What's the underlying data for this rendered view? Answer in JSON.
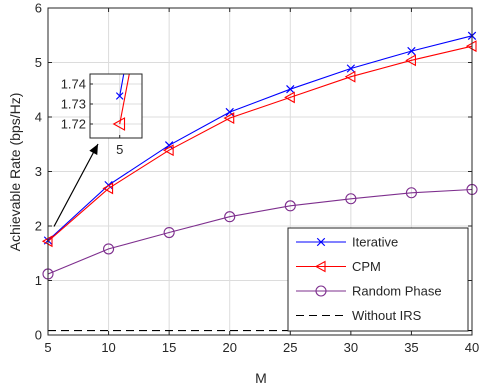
{
  "chart_data": {
    "type": "line",
    "xlabel": "M",
    "ylabel": "Achievable Rate (bps/Hz)",
    "xlim": [
      5,
      40
    ],
    "ylim": [
      0,
      6
    ],
    "x": [
      5,
      10,
      15,
      20,
      25,
      30,
      35,
      40
    ],
    "xticks": [
      "5",
      "10",
      "15",
      "20",
      "25",
      "30",
      "35",
      "40"
    ],
    "yticks": [
      "0",
      "1",
      "2",
      "3",
      "4",
      "5",
      "6"
    ],
    "grid": true,
    "legend_position": "bottom-right",
    "series": [
      {
        "name": "Iterative",
        "color": "#0000ff",
        "marker": "x",
        "dash": "solid",
        "values": [
          1.734,
          2.75,
          3.48,
          4.09,
          4.51,
          4.89,
          5.21,
          5.49
        ]
      },
      {
        "name": "CPM",
        "color": "#ff0000",
        "marker": "triangle-left",
        "dash": "solid",
        "values": [
          1.72,
          2.69,
          3.39,
          3.98,
          4.36,
          4.74,
          5.04,
          5.3
        ]
      },
      {
        "name": "Random Phase",
        "color": "#7e2f8e",
        "marker": "circle",
        "dash": "solid",
        "values": [
          1.12,
          1.58,
          1.88,
          2.17,
          2.37,
          2.5,
          2.61,
          2.67
        ]
      },
      {
        "name": "Without IRS",
        "color": "#000000",
        "marker": "none",
        "dash": "dashed",
        "values": [
          0.08,
          0.08,
          0.08,
          0.08,
          0.08,
          0.08,
          0.08,
          0.08
        ]
      }
    ],
    "inset": {
      "xlim": [
        4.6,
        5.3
      ],
      "ylim": [
        1.713,
        1.745
      ],
      "yticks": [
        "1.74",
        "1.73",
        "1.72"
      ],
      "ytick_values": [
        1.74,
        1.73,
        1.72
      ],
      "xticks": [
        "5"
      ],
      "xtick_values": [
        5
      ],
      "annotation": "arrow from inset to the point M = 5"
    }
  }
}
